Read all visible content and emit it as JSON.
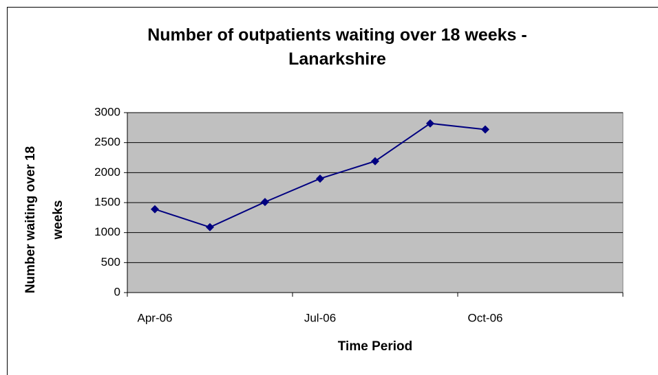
{
  "chart_data": {
    "type": "line",
    "title": "Number of outpatients waiting over 18 weeks - Lanarkshire",
    "x_label": "Time Period",
    "y_label": "Number waiting over 18 weeks",
    "categories": [
      "Apr-06",
      null,
      null,
      "Jul-06",
      null,
      null,
      "Oct-06",
      null,
      null
    ],
    "series": [
      {
        "name": "Lanarkshire",
        "color": "#000080",
        "values": [
          1390,
          1090,
          1510,
          1900,
          2190,
          2820,
          2720,
          null,
          null
        ]
      }
    ],
    "ylim": [
      0,
      3000
    ],
    "yticks": [
      0,
      500,
      1000,
      1500,
      2000,
      2500,
      3000
    ],
    "grid": true,
    "plot_background": "#c0c0c0"
  }
}
